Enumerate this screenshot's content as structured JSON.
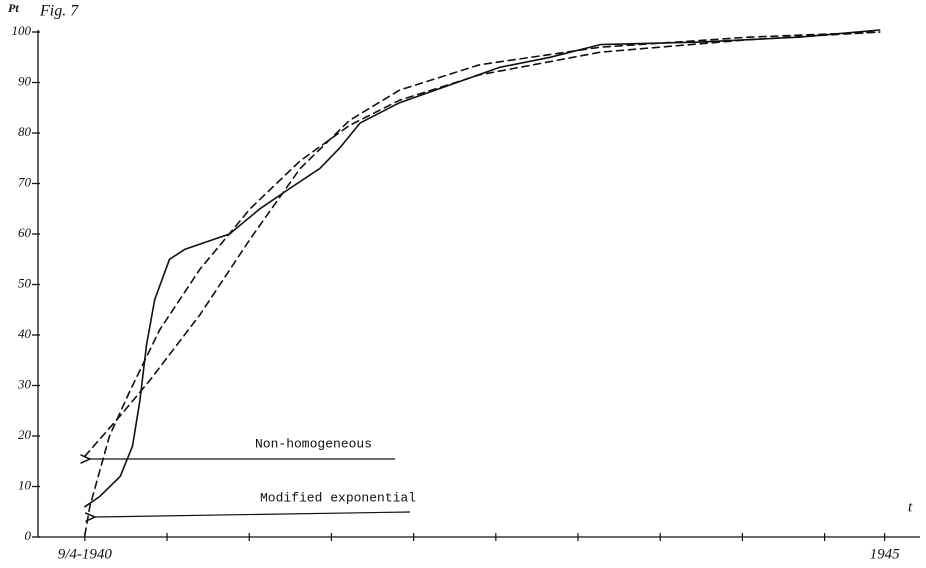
{
  "chart_data": {
    "type": "line",
    "title": "Fig. 7",
    "y_label": "Pt",
    "x_label": "t",
    "xlim": [
      -0.57,
      10.1
    ],
    "xticks": [
      {
        "value": 0,
        "label": "9/4-1940"
      },
      {
        "value": 1,
        "label": null
      },
      {
        "value": 2,
        "label": null
      },
      {
        "value": 3,
        "label": null
      },
      {
        "value": 4,
        "label": null
      },
      {
        "value": 5,
        "label": null
      },
      {
        "value": 6,
        "label": null
      },
      {
        "value": 7,
        "label": null
      },
      {
        "value": 8,
        "label": null
      },
      {
        "value": 9,
        "label": null
      },
      {
        "value": 9.73,
        "label": "1945"
      }
    ],
    "ylim": [
      0,
      100
    ],
    "yticks": [
      0,
      10,
      20,
      30,
      40,
      50,
      60,
      70,
      80,
      90,
      100
    ],
    "annotations": [
      "Non-homogeneous",
      "Modified exponential"
    ],
    "series": [
      {
        "name": null,
        "color": "#111111",
        "dash": false,
        "x": [
          0,
          0.18,
          0.43,
          0.58,
          0.67,
          0.75,
          0.85,
          1.03,
          1.22,
          1.4,
          1.76,
          2.13,
          2.49,
          2.86,
          3.1,
          3.35,
          3.83,
          4.44,
          5.05,
          5.66,
          6.27,
          7.48,
          8.7,
          9.67
        ],
        "values": [
          6,
          8,
          12,
          18,
          27,
          38,
          47,
          55,
          57,
          58,
          60,
          65,
          69,
          73,
          77,
          82,
          86,
          89.5,
          93,
          95,
          97.5,
          98,
          99,
          100.4
        ]
      },
      {
        "name": "Non-homogeneous",
        "color": "#111111",
        "dash": true,
        "x": [
          0,
          0.43,
          0.79,
          1.4,
          2.01,
          2.62,
          3.22,
          3.83,
          4.8,
          6.27,
          8.09,
          9.67
        ],
        "values": [
          16,
          24,
          31,
          44,
          59,
          73,
          82.5,
          88.5,
          93.5,
          97,
          99,
          100
        ]
      },
      {
        "name": "Modified exponential",
        "color": "#111111",
        "dash": true,
        "x": [
          0,
          0.06,
          0.18,
          0.3,
          0.55,
          0.91,
          1.4,
          2.01,
          2.62,
          3.22,
          3.83,
          4.8,
          6.27,
          8.09,
          9.67
        ],
        "values": [
          0.4,
          6,
          13,
          20,
          29,
          41,
          53,
          65,
          74.5,
          81.5,
          86.5,
          91.5,
          96,
          98.5,
          100
        ]
      }
    ]
  }
}
